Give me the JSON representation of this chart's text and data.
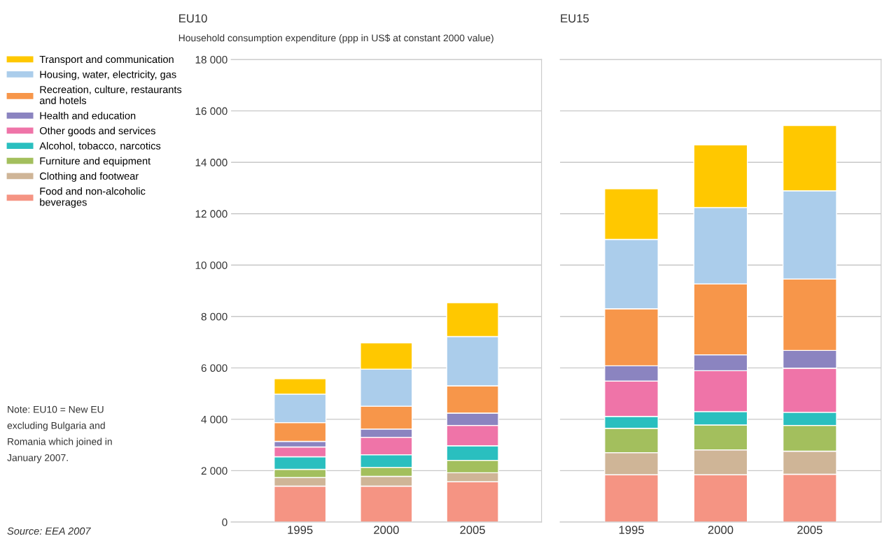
{
  "chart_data": [
    {
      "type": "bar",
      "title": "EU10",
      "subtitle": "Household consumption expenditure (ppp in US$ at constant 2000 value)",
      "categories": [
        "1995",
        "2000",
        "2005"
      ],
      "stacked": true,
      "ylim": [
        0,
        18000
      ],
      "yticks": [
        0,
        {
          "value": 2000,
          "label": "2 000"
        },
        {
          "value": 4000,
          "label": "4 000"
        },
        {
          "value": 6000,
          "label": "6 000"
        },
        {
          "value": 8000,
          "label": "8 000"
        },
        {
          "value": 10000,
          "label": "10 000"
        },
        {
          "value": 12000,
          "label": "12 000"
        },
        {
          "value": 14000,
          "label": "14 000"
        },
        {
          "value": 16000,
          "label": "16 000"
        },
        {
          "value": 18000,
          "label": "18 000"
        }
      ],
      "grid": "y",
      "legend": "left",
      "series": [
        {
          "name": "Food and non-alcoholic\nbeverages",
          "color": "#f59483",
          "values": [
            1400,
            1400,
            1570
          ]
        },
        {
          "name": "Clothing and footwear",
          "color": "#cfb597",
          "values": [
            330,
            380,
            350
          ]
        },
        {
          "name": "Furniture and equipment",
          "color": "#a3bf5d",
          "values": [
            320,
            350,
            480
          ]
        },
        {
          "name": "Alcohol, tobacco, narcotics",
          "color": "#2abfbf",
          "values": [
            490,
            490,
            570
          ]
        },
        {
          "name": "Other goods and services",
          "color": "#ef74a8",
          "values": [
            380,
            680,
            790
          ]
        },
        {
          "name": "Health and education",
          "color": "#8b84c0",
          "values": [
            220,
            320,
            480
          ]
        },
        {
          "name": "Recreation, culture, restaurants\nand hotels",
          "color": "#f7964a",
          "values": [
            730,
            890,
            1060
          ]
        },
        {
          "name": "Housing, water, electricity, gas",
          "color": "#abcdeb",
          "values": [
            1110,
            1440,
            1920
          ]
        },
        {
          "name": "Transport and communication",
          "color": "#ffc800",
          "values": [
            600,
            1020,
            1320
          ]
        }
      ],
      "annotations": [
        "Note: EU10 = New EU\nexcluding Bulgaria and\nRomania which joined in\nJanuary 2007.",
        "Source: EEA 2007"
      ]
    },
    {
      "type": "bar",
      "title": "EU15",
      "categories": [
        "1995",
        "2000",
        "2005"
      ],
      "stacked": true,
      "ylim": [
        0,
        18000
      ],
      "yticks": [
        0,
        2000,
        4000,
        6000,
        8000,
        10000,
        12000,
        14000,
        16000,
        18000
      ],
      "grid": "y",
      "tick_labels": "x",
      "series": [
        {
          "color": "#f59483",
          "values": [
            1840,
            1840,
            1860
          ]
        },
        {
          "color": "#cfb597",
          "values": [
            860,
            970,
            900
          ]
        },
        {
          "color": "#a3bf5d",
          "values": [
            950,
            970,
            1000
          ]
        },
        {
          "color": "#2abfbf",
          "values": [
            460,
            520,
            510
          ]
        },
        {
          "color": "#ef74a8",
          "values": [
            1380,
            1590,
            1720
          ]
        },
        {
          "color": "#8b84c0",
          "values": [
            590,
            620,
            690
          ]
        },
        {
          "color": "#f7964a",
          "values": [
            2220,
            2760,
            2780
          ]
        },
        {
          "color": "#abcdeb",
          "values": [
            2700,
            2970,
            3430
          ]
        },
        {
          "color": "#ffc800",
          "values": [
            1970,
            2440,
            2540
          ]
        }
      ]
    }
  ]
}
